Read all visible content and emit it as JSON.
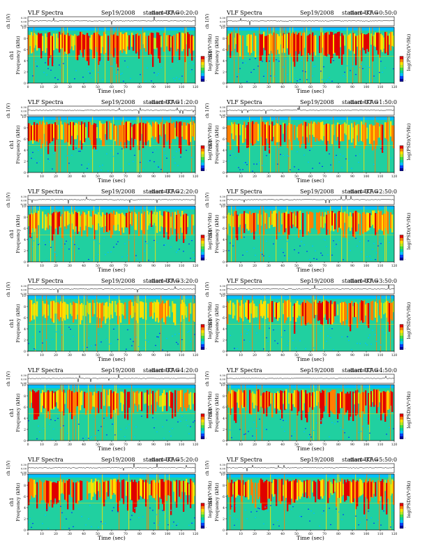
{
  "page_title": "VLF Spectra",
  "date": "Sep19/2008",
  "station": "station=KAG",
  "start_prefix": "start  UT  =",
  "colors": {
    "cbar": [
      "#0000a0",
      "#0040ff",
      "#00c0ff",
      "#00d2a0",
      "#40e040",
      "#b8e820",
      "#ffe000",
      "#ff8000",
      "#e00000"
    ],
    "spec_bg": "#20d0a0"
  },
  "chart_data": [
    {
      "type": "heatmap",
      "start_ut": "0:20:0",
      "ch_label": "ch 1(V)",
      "ch_ticks": [
        "0.30",
        "0.00",
        "-0.30"
      ],
      "ylabel": "Frequency (kHz)",
      "side_label": "ch1",
      "xlabel": "Time (sec)",
      "xticks": [
        0,
        10,
        20,
        30,
        40,
        50,
        60,
        70,
        80,
        90,
        100,
        110,
        120
      ],
      "yticks": [
        0,
        2,
        4,
        6,
        8,
        10
      ],
      "xlim": [
        0,
        120
      ],
      "ylim": [
        0,
        10
      ],
      "cbar_label": "log(PSD)(V²/Hz)",
      "cbar_ticks": [
        "-",
        "-"
      ],
      "intensity": 0.6
    },
    {
      "type": "heatmap",
      "start_ut": "0:50:0",
      "ch_label": "ch 1(V)",
      "ch_ticks": [
        "0.30",
        "0.00",
        "-0.30"
      ],
      "ylabel": "Frequency (kHz)",
      "side_label": "ch1",
      "xlabel": "Time (sec)",
      "xticks": [
        0,
        10,
        20,
        30,
        40,
        50,
        60,
        70,
        80,
        90,
        100,
        110,
        120
      ],
      "yticks": [
        0,
        2,
        4,
        6,
        8,
        10
      ],
      "xlim": [
        0,
        120
      ],
      "ylim": [
        0,
        10
      ],
      "cbar_label": "log(PSD)(V²/Hz)",
      "cbar_ticks": [
        "-",
        "-"
      ],
      "intensity": 0.6
    },
    {
      "type": "heatmap",
      "start_ut": "1:20:0",
      "ch_label": "ch 1(V)",
      "ch_ticks": [
        "0.30",
        "0.00",
        "-0.30"
      ],
      "ylabel": "Frequency (kHz)",
      "side_label": "ch1",
      "xlabel": "Time (sec)",
      "xticks": [
        0,
        10,
        20,
        30,
        40,
        50,
        60,
        70,
        80,
        90,
        100,
        110,
        120
      ],
      "yticks": [
        0,
        2,
        4,
        6,
        8,
        10
      ],
      "xlim": [
        0,
        120
      ],
      "ylim": [
        0,
        10
      ],
      "cbar_label": "log(PSD)(V²/Hz)",
      "cbar_ticks": [
        "-",
        "-"
      ],
      "intensity": 0.55
    },
    {
      "type": "heatmap",
      "start_ut": "1:50:0",
      "ch_label": "ch 1(V)",
      "ch_ticks": [
        "0.30",
        "0.00",
        "-0.30"
      ],
      "ylabel": "Frequency (kHz)",
      "side_label": "ch1",
      "xlabel": "Time (sec)",
      "xticks": [
        0,
        10,
        20,
        30,
        40,
        50,
        60,
        70,
        80,
        90,
        100,
        110,
        120
      ],
      "yticks": [
        0,
        2,
        4,
        6,
        8,
        10
      ],
      "xlim": [
        0,
        120
      ],
      "ylim": [
        0,
        10
      ],
      "cbar_label": "log(PSD)(V²/Hz)",
      "cbar_ticks": [
        "-",
        "-"
      ],
      "intensity": 0.45
    },
    {
      "type": "heatmap",
      "start_ut": "2:20:0",
      "ch_label": "ch 1(V)",
      "ch_ticks": [
        "0.30",
        "0.00",
        "-0.30"
      ],
      "ylabel": "Frequency (kHz)",
      "side_label": "ch1",
      "xlabel": "Time (sec)",
      "xticks": [
        0,
        10,
        20,
        30,
        40,
        50,
        60,
        70,
        80,
        90,
        100,
        110,
        120
      ],
      "yticks": [
        0,
        2,
        4,
        6,
        8,
        10
      ],
      "xlim": [
        0,
        120
      ],
      "ylim": [
        0,
        10
      ],
      "cbar_label": "log(PSD)(V²/Hz)",
      "cbar_ticks": [
        "-",
        "-"
      ],
      "intensity": 0.5
    },
    {
      "type": "heatmap",
      "start_ut": "2:50:0",
      "ch_label": "ch 1(V)",
      "ch_ticks": [
        "0.30",
        "0.00",
        "-0.30"
      ],
      "ylabel": "Frequency (kHz)",
      "side_label": "ch1",
      "xlabel": "Time (sec)",
      "xticks": [
        0,
        10,
        20,
        30,
        40,
        50,
        60,
        70,
        80,
        90,
        100,
        110,
        120
      ],
      "yticks": [
        0,
        2,
        4,
        6,
        8,
        10
      ],
      "xlim": [
        0,
        120
      ],
      "ylim": [
        0,
        10
      ],
      "cbar_label": "log(PSD)(V²/Hz)",
      "cbar_ticks": [
        "-",
        "-"
      ],
      "intensity": 0.45
    },
    {
      "type": "heatmap",
      "start_ut": "3:20:0",
      "ch_label": "ch 1(V)",
      "ch_ticks": [
        "0.30",
        "0.00",
        "-0.30"
      ],
      "ylabel": "Frequency (kHz)",
      "side_label": "ch1",
      "xlabel": "Time (sec)",
      "xticks": [
        0,
        10,
        20,
        30,
        40,
        50,
        60,
        70,
        80,
        90,
        100,
        110,
        120
      ],
      "yticks": [
        0,
        2,
        4,
        6,
        8,
        10
      ],
      "xlim": [
        0,
        120
      ],
      "ylim": [
        0,
        10
      ],
      "cbar_label": "log(PSD)(V²/Hz)",
      "cbar_ticks": [
        "-",
        "-"
      ],
      "intensity": 0.35
    },
    {
      "type": "heatmap",
      "start_ut": "3:50:0",
      "ch_label": "ch 1(V)",
      "ch_ticks": [
        "0.30",
        "0.00",
        "-0.30"
      ],
      "ylabel": "Frequency (kHz)",
      "side_label": "ch1",
      "xlabel": "Time (sec)",
      "xticks": [
        0,
        10,
        20,
        30,
        40,
        50,
        60,
        70,
        80,
        90,
        100,
        110,
        120
      ],
      "yticks": [
        0,
        2,
        4,
        6,
        8,
        10
      ],
      "xlim": [
        0,
        120
      ],
      "ylim": [
        0,
        10
      ],
      "cbar_label": "log(PSD)(V²/Hz)",
      "cbar_ticks": [
        "-",
        "-"
      ],
      "intensity": 0.5
    },
    {
      "type": "heatmap",
      "start_ut": "4:20:0",
      "ch_label": "ch 1(V)",
      "ch_ticks": [
        "0.30",
        "0.00",
        "-0.30"
      ],
      "ylabel": "Frequency (kHz)",
      "side_label": "ch1",
      "xlabel": "Time (sec)",
      "xticks": [
        0,
        10,
        20,
        30,
        40,
        50,
        60,
        70,
        80,
        90,
        100,
        110,
        120
      ],
      "yticks": [
        0,
        2,
        4,
        6,
        8,
        10
      ],
      "xlim": [
        0,
        120
      ],
      "ylim": [
        0,
        10
      ],
      "cbar_label": "log(PSD)(V²/Hz)",
      "cbar_ticks": [
        "-",
        "-"
      ],
      "intensity": 0.5
    },
    {
      "type": "heatmap",
      "start_ut": "4:50:0",
      "ch_label": "ch 1(V)",
      "ch_ticks": [
        "0.30",
        "0.00",
        "-0.30"
      ],
      "ylabel": "Frequency (kHz)",
      "side_label": "ch1",
      "xlabel": "Time (sec)",
      "xticks": [
        0,
        10,
        20,
        30,
        40,
        50,
        60,
        70,
        80,
        90,
        100,
        110,
        120
      ],
      "yticks": [
        0,
        2,
        4,
        6,
        8,
        10
      ],
      "xlim": [
        0,
        120
      ],
      "ylim": [
        0,
        10
      ],
      "cbar_label": "log(PSD)(V²/Hz)",
      "cbar_ticks": [
        "-",
        "-"
      ],
      "intensity": 0.55
    },
    {
      "type": "heatmap",
      "start_ut": "5:20:0",
      "ch_label": "ch 1(V)",
      "ch_ticks": [
        "0.30",
        "0.00",
        "-0.30"
      ],
      "ylabel": "Frequency (kHz)",
      "side_label": "ch1",
      "xlabel": "Time (sec)",
      "xticks": [
        0,
        10,
        20,
        30,
        40,
        50,
        60,
        70,
        80,
        90,
        100,
        110,
        120
      ],
      "yticks": [
        0,
        2,
        4,
        6,
        8,
        10
      ],
      "xlim": [
        0,
        120
      ],
      "ylim": [
        0,
        10
      ],
      "cbar_label": "log(PSD)(V²/Hz)",
      "cbar_ticks": [
        "-",
        "-"
      ],
      "intensity": 0.6
    },
    {
      "type": "heatmap",
      "start_ut": "5:50:0",
      "ch_label": "ch 1(V)",
      "ch_ticks": [
        "0.30",
        "0.00",
        "-0.30"
      ],
      "ylabel": "Frequency (kHz)",
      "side_label": "ch1",
      "xlabel": "Time (sec)",
      "xticks": [
        0,
        10,
        20,
        30,
        40,
        50,
        60,
        70,
        80,
        90,
        100,
        110,
        120
      ],
      "yticks": [
        0,
        2,
        4,
        6,
        8,
        10
      ],
      "xlim": [
        0,
        120
      ],
      "ylim": [
        0,
        10
      ],
      "cbar_label": "log(PSD)(V²/Hz)",
      "cbar_ticks": [
        "-",
        "-"
      ],
      "intensity": 0.6
    }
  ]
}
